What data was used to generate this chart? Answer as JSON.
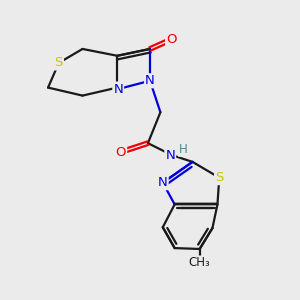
{
  "bg_color": "#ebebeb",
  "bond_color": "#1a1a1a",
  "bond_width": 1.6,
  "atom_colors": {
    "S": "#c8c800",
    "N": "#0000dd",
    "O": "#ee0000",
    "C": "#1a1a1a",
    "H": "#508888"
  },
  "fs": 9.5,
  "figsize": [
    3.0,
    3.0
  ],
  "dpi": 100
}
